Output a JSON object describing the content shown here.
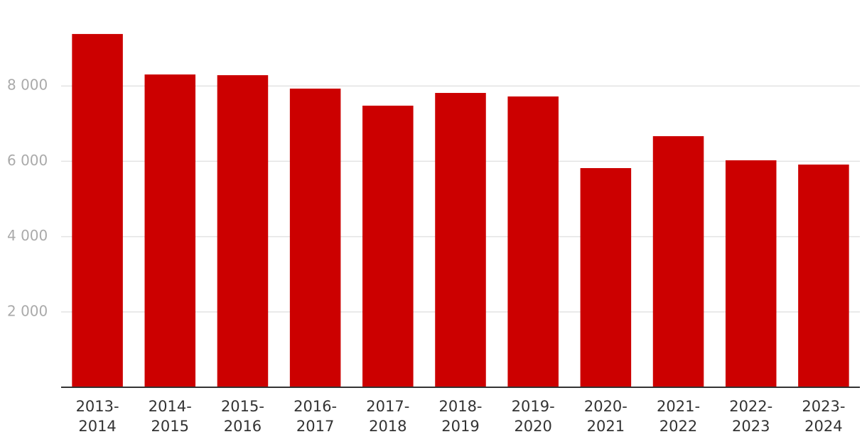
{
  "chart_data": {
    "type": "bar",
    "categories": [
      "2013-2014",
      "2014-2015",
      "2015-2016",
      "2016-2017",
      "2017-2018",
      "2018-2019",
      "2019-2020",
      "2020-2021",
      "2021-2022",
      "2022-2023",
      "2023-2024"
    ],
    "values": [
      9380,
      8305,
      8286,
      7930,
      7477,
      7815,
      7721,
      5819,
      6667,
      6026,
      5913
    ],
    "color": "#cc0000",
    "ylim": [
      0,
      10000
    ],
    "yticks": [
      {
        "value": 2000,
        "label": "2 000"
      },
      {
        "value": 4000,
        "label": "4 000"
      },
      {
        "value": 6000,
        "label": "6 000"
      },
      {
        "value": 8000,
        "label": "8 000"
      }
    ],
    "grid": true
  }
}
